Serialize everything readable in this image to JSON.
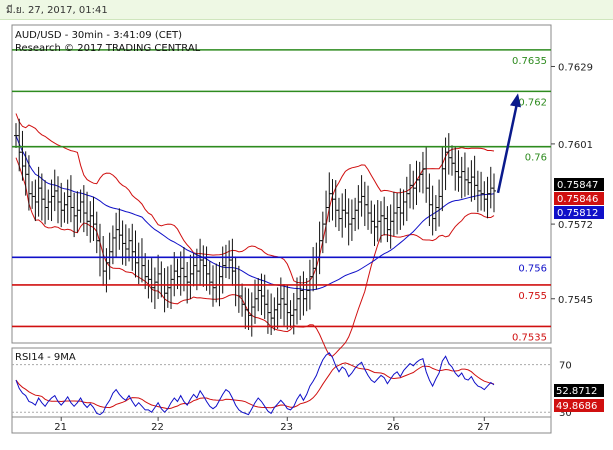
{
  "header": {
    "timestamp": "มี.ย. 27, 2017, 01:41"
  },
  "chart_data": [
    {
      "type": "candlestick",
      "title": "AUD/USD - 30min - 3:41:09 (CET)",
      "subtitle": "Research © 2017 TRADING CENTRAL",
      "x_ticks": [
        "21",
        "22",
        "23",
        "26",
        "27"
      ],
      "y_ticks": [
        "0.7629",
        "0.7601",
        "0.7572",
        "0.7545"
      ],
      "ylim": [
        0.7529,
        0.7644
      ],
      "levels": [
        {
          "label": "0.7635",
          "value": 0.7635,
          "color": "#2e8b1f",
          "label_color": "#2e8b1f"
        },
        {
          "label": "0.762",
          "value": 0.762,
          "color": "#2e8b1f",
          "label_color": "#2e8b1f"
        },
        {
          "label": "0.76",
          "value": 0.76,
          "color": "#2e8b1f",
          "label_color": "#2e8b1f"
        },
        {
          "label": "0.756",
          "value": 0.756,
          "color": "#1010c8",
          "label_color": "#1010c8"
        },
        {
          "label": "0.755",
          "value": 0.755,
          "color": "#d01010",
          "label_color": "#d01010"
        },
        {
          "label": "0.7535",
          "value": 0.7535,
          "color": "#d01010",
          "label_color": "#d01010"
        }
      ],
      "value_tags": [
        {
          "label": "0.75847",
          "value": 0.75847,
          "color": "#000000"
        },
        {
          "label": "0.75846",
          "value": 0.75846,
          "color": "#d01010"
        },
        {
          "label": "0.75812",
          "value": 0.75812,
          "color": "#1010c8"
        }
      ],
      "close_series": [
        0.7604,
        0.7598,
        0.7593,
        0.759,
        0.7583,
        0.7582,
        0.758,
        0.7585,
        0.7581,
        0.7578,
        0.758,
        0.7582,
        0.7584,
        0.758,
        0.7577,
        0.7579,
        0.7582,
        0.7578,
        0.7575,
        0.7577,
        0.758,
        0.7576,
        0.7573,
        0.7575,
        0.7572,
        0.7566,
        0.756,
        0.7555,
        0.7558,
        0.7562,
        0.7567,
        0.757,
        0.7568,
        0.7565,
        0.7563,
        0.7566,
        0.7562,
        0.7558,
        0.756,
        0.7557,
        0.7553,
        0.7552,
        0.7549,
        0.7551,
        0.7554,
        0.755,
        0.7547,
        0.7549,
        0.7552,
        0.7555,
        0.7553,
        0.7556,
        0.7553,
        0.7551,
        0.7554,
        0.7557,
        0.7555,
        0.7559,
        0.7557,
        0.7554,
        0.7551,
        0.7549,
        0.755,
        0.7553,
        0.7557,
        0.756,
        0.7559,
        0.7555,
        0.755,
        0.7546,
        0.7543,
        0.7541,
        0.7539,
        0.7542,
        0.7545,
        0.7548,
        0.7546,
        0.7543,
        0.754,
        0.7538,
        0.7541,
        0.7543,
        0.7545,
        0.7543,
        0.754,
        0.7539,
        0.7541,
        0.7545,
        0.7548,
        0.7545,
        0.7548,
        0.7553,
        0.7556,
        0.756,
        0.7566,
        0.7572,
        0.7578,
        0.7583,
        0.7581,
        0.7577,
        0.7574,
        0.7577,
        0.7576,
        0.7572,
        0.7574,
        0.7577,
        0.758,
        0.7582,
        0.7579,
        0.7576,
        0.7573,
        0.7571,
        0.7573,
        0.7575,
        0.7574,
        0.757,
        0.7573,
        0.7576,
        0.7578,
        0.7576,
        0.758,
        0.7583,
        0.7586,
        0.7585,
        0.7588,
        0.759,
        0.7592,
        0.7585,
        0.7579,
        0.7574,
        0.7578,
        0.7582,
        0.7592,
        0.7598,
        0.7596,
        0.7594,
        0.7591,
        0.7589,
        0.7591,
        0.7588,
        0.7587,
        0.7589,
        0.7586,
        0.7584,
        0.7583,
        0.7581,
        0.7583,
        0.7585,
        0.7584
      ],
      "forecast_target": 0.762,
      "rsi": {
        "title": "RSI14 - 9MA",
        "ylim": [
          26,
          84
        ],
        "y_ticks": [
          "70",
          "30"
        ],
        "tags": [
          {
            "label": "52.8712",
            "value": 52.8712,
            "color": "#000000"
          },
          {
            "label": "49.8686",
            "value": 49.8686,
            "color": "#d01010"
          }
        ],
        "values": [
          57,
          50,
          46,
          44,
          39,
          38,
          36,
          42,
          38,
          35,
          39,
          42,
          44,
          39,
          36,
          39,
          43,
          38,
          35,
          38,
          42,
          37,
          34,
          37,
          34,
          29,
          28,
          30,
          36,
          40,
          46,
          49,
          45,
          42,
          40,
          44,
          39,
          35,
          38,
          35,
          32,
          32,
          30,
          34,
          38,
          33,
          30,
          33,
          38,
          42,
          39,
          44,
          39,
          36,
          41,
          45,
          42,
          48,
          44,
          39,
          35,
          33,
          35,
          40,
          45,
          49,
          47,
          42,
          36,
          32,
          30,
          29,
          28,
          33,
          38,
          42,
          39,
          35,
          31,
          29,
          34,
          37,
          40,
          37,
          33,
          32,
          35,
          41,
          45,
          40,
          45,
          52,
          56,
          61,
          68,
          74,
          78,
          80,
          76,
          69,
          64,
          68,
          66,
          60,
          63,
          67,
          70,
          72,
          66,
          61,
          57,
          55,
          58,
          61,
          59,
          54,
          58,
          62,
          64,
          60,
          65,
          68,
          71,
          69,
          72,
          74,
          75,
          64,
          57,
          52,
          58,
          63,
          73,
          77,
          71,
          68,
          63,
          60,
          63,
          58,
          57,
          60,
          55,
          52,
          51,
          49,
          52,
          55,
          53
        ]
      }
    }
  ]
}
